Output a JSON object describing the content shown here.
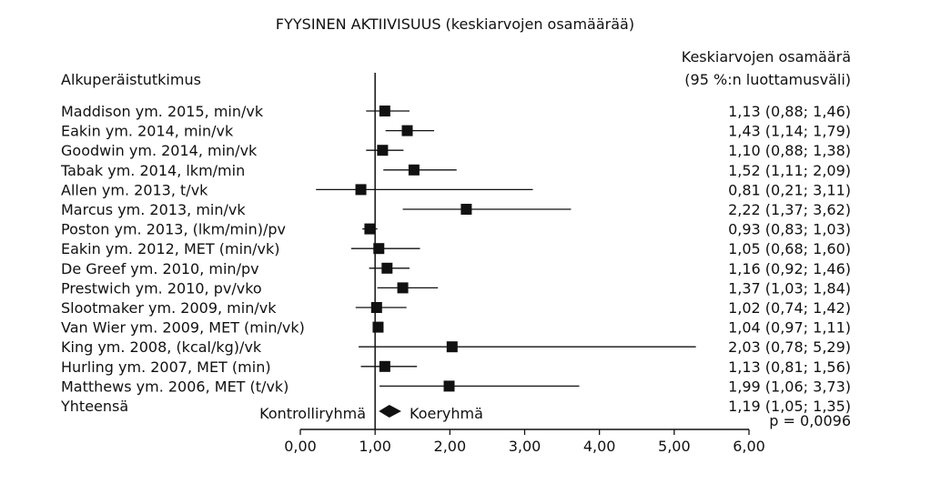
{
  "chart_data": {
    "type": "forest",
    "title": "FYYSINEN AKTIIVISUUS (keskiarvojen osamäärää)",
    "studies_header": "Alkuperäistutkimus",
    "value_header_line1": "Keskiarvojen osamäärä",
    "value_header_line2": "(95 %:n luottamusväli)",
    "left_label": "Kontrolliryhmä",
    "right_label": "Koeryhmä",
    "p_value_text": "p = 0,0096",
    "xlim": [
      0,
      6
    ],
    "x_ticks": [
      {
        "value": 0,
        "label": "0,00"
      },
      {
        "value": 1,
        "label": "1,00"
      },
      {
        "value": 2,
        "label": "2,00"
      },
      {
        "value": 3,
        "label": "3,00"
      },
      {
        "value": 4,
        "label": "4,00"
      },
      {
        "value": 5,
        "label": "5,00"
      },
      {
        "value": 6,
        "label": "6,00"
      }
    ],
    "reference_line": 1,
    "studies": [
      {
        "label": "Maddison ym. 2015, min/vk",
        "estimate": 1.13,
        "lower": 0.88,
        "upper": 1.46,
        "text": "1,13 (0,88; 1,46)"
      },
      {
        "label": "Eakin ym. 2014, min/vk",
        "estimate": 1.43,
        "lower": 1.14,
        "upper": 1.79,
        "text": "1,43 (1,14; 1,79)"
      },
      {
        "label": "Goodwin ym. 2014, min/vk",
        "estimate": 1.1,
        "lower": 0.88,
        "upper": 1.38,
        "text": "1,10 (0,88; 1,38)"
      },
      {
        "label": "Tabak ym. 2014, lkm/min",
        "estimate": 1.52,
        "lower": 1.11,
        "upper": 2.09,
        "text": "1,52 (1,11; 2,09)"
      },
      {
        "label": "Allen ym. 2013, t/vk",
        "estimate": 0.81,
        "lower": 0.21,
        "upper": 3.11,
        "text": "0,81 (0,21; 3,11)"
      },
      {
        "label": "Marcus ym. 2013, min/vk",
        "estimate": 2.22,
        "lower": 1.37,
        "upper": 3.62,
        "text": "2,22 (1,37; 3,62)"
      },
      {
        "label": "Poston ym. 2013, (lkm/min)/pv",
        "estimate": 0.93,
        "lower": 0.83,
        "upper": 1.03,
        "text": "0,93 (0,83; 1,03)"
      },
      {
        "label": "Eakin ym. 2012, MET (min/vk)",
        "estimate": 1.05,
        "lower": 0.68,
        "upper": 1.6,
        "text": "1,05 (0,68; 1,60)"
      },
      {
        "label": "De Greef ym. 2010, min/pv",
        "estimate": 1.16,
        "lower": 0.92,
        "upper": 1.46,
        "text": "1,16 (0,92; 1,46)"
      },
      {
        "label": "Prestwich ym. 2010, pv/vko",
        "estimate": 1.37,
        "lower": 1.03,
        "upper": 1.84,
        "text": "1,37 (1,03; 1,84)"
      },
      {
        "label": "Slootmaker ym. 2009, min/vk",
        "estimate": 1.02,
        "lower": 0.74,
        "upper": 1.42,
        "text": "1,02 (0,74; 1,42)"
      },
      {
        "label": "Van Wier ym. 2009, MET (min/vk)",
        "estimate": 1.04,
        "lower": 0.97,
        "upper": 1.11,
        "text": "1,04 (0,97; 1,11)"
      },
      {
        "label": "King ym. 2008, (kcal/kg)/vk",
        "estimate": 2.03,
        "lower": 0.78,
        "upper": 5.29,
        "text": "2,03 (0,78; 5,29)"
      },
      {
        "label": "Hurling ym. 2007, MET (min)",
        "estimate": 1.13,
        "lower": 0.81,
        "upper": 1.56,
        "text": "1,13 (0,81; 1,56)"
      },
      {
        "label": "Matthews ym. 2006, MET (t/vk)",
        "estimate": 1.99,
        "lower": 1.06,
        "upper": 3.73,
        "text": "1,99 (1,06; 3,73)"
      }
    ],
    "total": {
      "label": "Yhteensä",
      "estimate": 1.19,
      "lower": 1.05,
      "upper": 1.35,
      "text": "1,19 (1,05; 1,35)"
    }
  }
}
